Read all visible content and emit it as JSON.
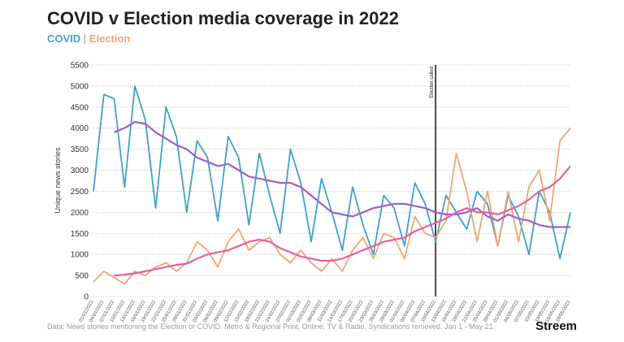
{
  "chart_data": {
    "type": "line",
    "title": "COVID v Election media coverage in 2022",
    "legend_separator": "|",
    "ylabel": "Unique news stories",
    "source": "Data: News stories mentioning the Election or COVID. Metro & Regional Print, Online, TV & Radio. Syndications removed. Jan 1 - May 21.",
    "brand": "Streem",
    "annotation": {
      "text": "Election called",
      "x": "10/04/2022"
    },
    "ylim": [
      0,
      5500
    ],
    "yticks": [
      0,
      500,
      1000,
      1500,
      2000,
      2500,
      3000,
      3500,
      4000,
      4500,
      5000,
      5500
    ],
    "grid": true,
    "x": [
      "01/01/2022",
      "04/01/2022",
      "07/01/2022",
      "10/01/2022",
      "13/01/2022",
      "16/01/2022",
      "19/01/2022",
      "22/01/2022",
      "25/01/2022",
      "28/01/2022",
      "31/01/2022",
      "03/02/2022",
      "06/02/2022",
      "09/02/2022",
      "12/02/2022",
      "15/02/2022",
      "18/02/2022",
      "21/02/2022",
      "24/02/2022",
      "27/02/2022",
      "02/03/2022",
      "05/03/2022",
      "08/03/2022",
      "11/03/2022",
      "14/03/2022",
      "17/03/2022",
      "20/03/2022",
      "23/03/2022",
      "26/03/2022",
      "29/03/2022",
      "01/04/2022",
      "04/04/2022",
      "07/04/2022",
      "10/04/2022",
      "13/04/2022",
      "16/04/2022",
      "19/04/2022",
      "22/04/2022",
      "25/04/2022",
      "28/04/2022",
      "01/05/2022",
      "04/05/2022",
      "07/05/2022",
      "10/05/2022",
      "13/05/2022",
      "16/05/2022",
      "19/05/2022"
    ],
    "series": [
      {
        "name": "COVID",
        "color": "#3fa0cb",
        "values": [
          2500,
          4800,
          4700,
          2600,
          5000,
          4200,
          2100,
          4500,
          3800,
          2000,
          3700,
          3300,
          1800,
          3800,
          3300,
          1700,
          3400,
          2400,
          1500,
          3500,
          2700,
          1300,
          2800,
          2000,
          1100,
          2600,
          1700,
          1000,
          2400,
          2100,
          1200,
          2700,
          2200,
          1300,
          2400,
          2000,
          1600,
          2500,
          2200,
          1200,
          2400,
          1900,
          1000,
          2500,
          2000,
          900,
          2000
        ]
      },
      {
        "name": "Election",
        "color": "#f0a575",
        "values": [
          350,
          600,
          450,
          300,
          600,
          500,
          700,
          800,
          600,
          800,
          1300,
          1100,
          700,
          1300,
          1600,
          1100,
          1300,
          1400,
          1000,
          800,
          1100,
          800,
          600,
          900,
          600,
          1100,
          1400,
          900,
          1500,
          1400,
          900,
          1900,
          1500,
          1400,
          1800,
          3400,
          2500,
          1300,
          2500,
          1200,
          2500,
          1300,
          2600,
          3000,
          1800,
          3700,
          4000
        ]
      },
      {
        "color": "#9d5fc9",
        "values": [
          null,
          null,
          3900,
          4000,
          4150,
          4100,
          3900,
          3750,
          3600,
          3500,
          3300,
          3200,
          3100,
          3150,
          3000,
          2850,
          2800,
          2750,
          2700,
          2700,
          2600,
          2400,
          2200,
          2000,
          1950,
          1900,
          2000,
          2100,
          2150,
          2200,
          2200,
          2150,
          2100,
          2000,
          1950,
          1950,
          2000,
          2100,
          1900,
          1800,
          1950,
          1850,
          1800,
          1700,
          1650,
          1650,
          1650
        ]
      },
      {
        "color": "#e8609c",
        "values": [
          null,
          null,
          500,
          520,
          550,
          600,
          650,
          700,
          750,
          780,
          900,
          1000,
          1050,
          1100,
          1200,
          1300,
          1350,
          1300,
          1150,
          1050,
          950,
          900,
          850,
          850,
          900,
          1000,
          1100,
          1200,
          1300,
          1350,
          1400,
          1550,
          1650,
          1750,
          1850,
          2000,
          2100,
          2000,
          2000,
          1950,
          2050,
          2150,
          2300,
          2500,
          2600,
          2800,
          3100
        ]
      }
    ]
  }
}
